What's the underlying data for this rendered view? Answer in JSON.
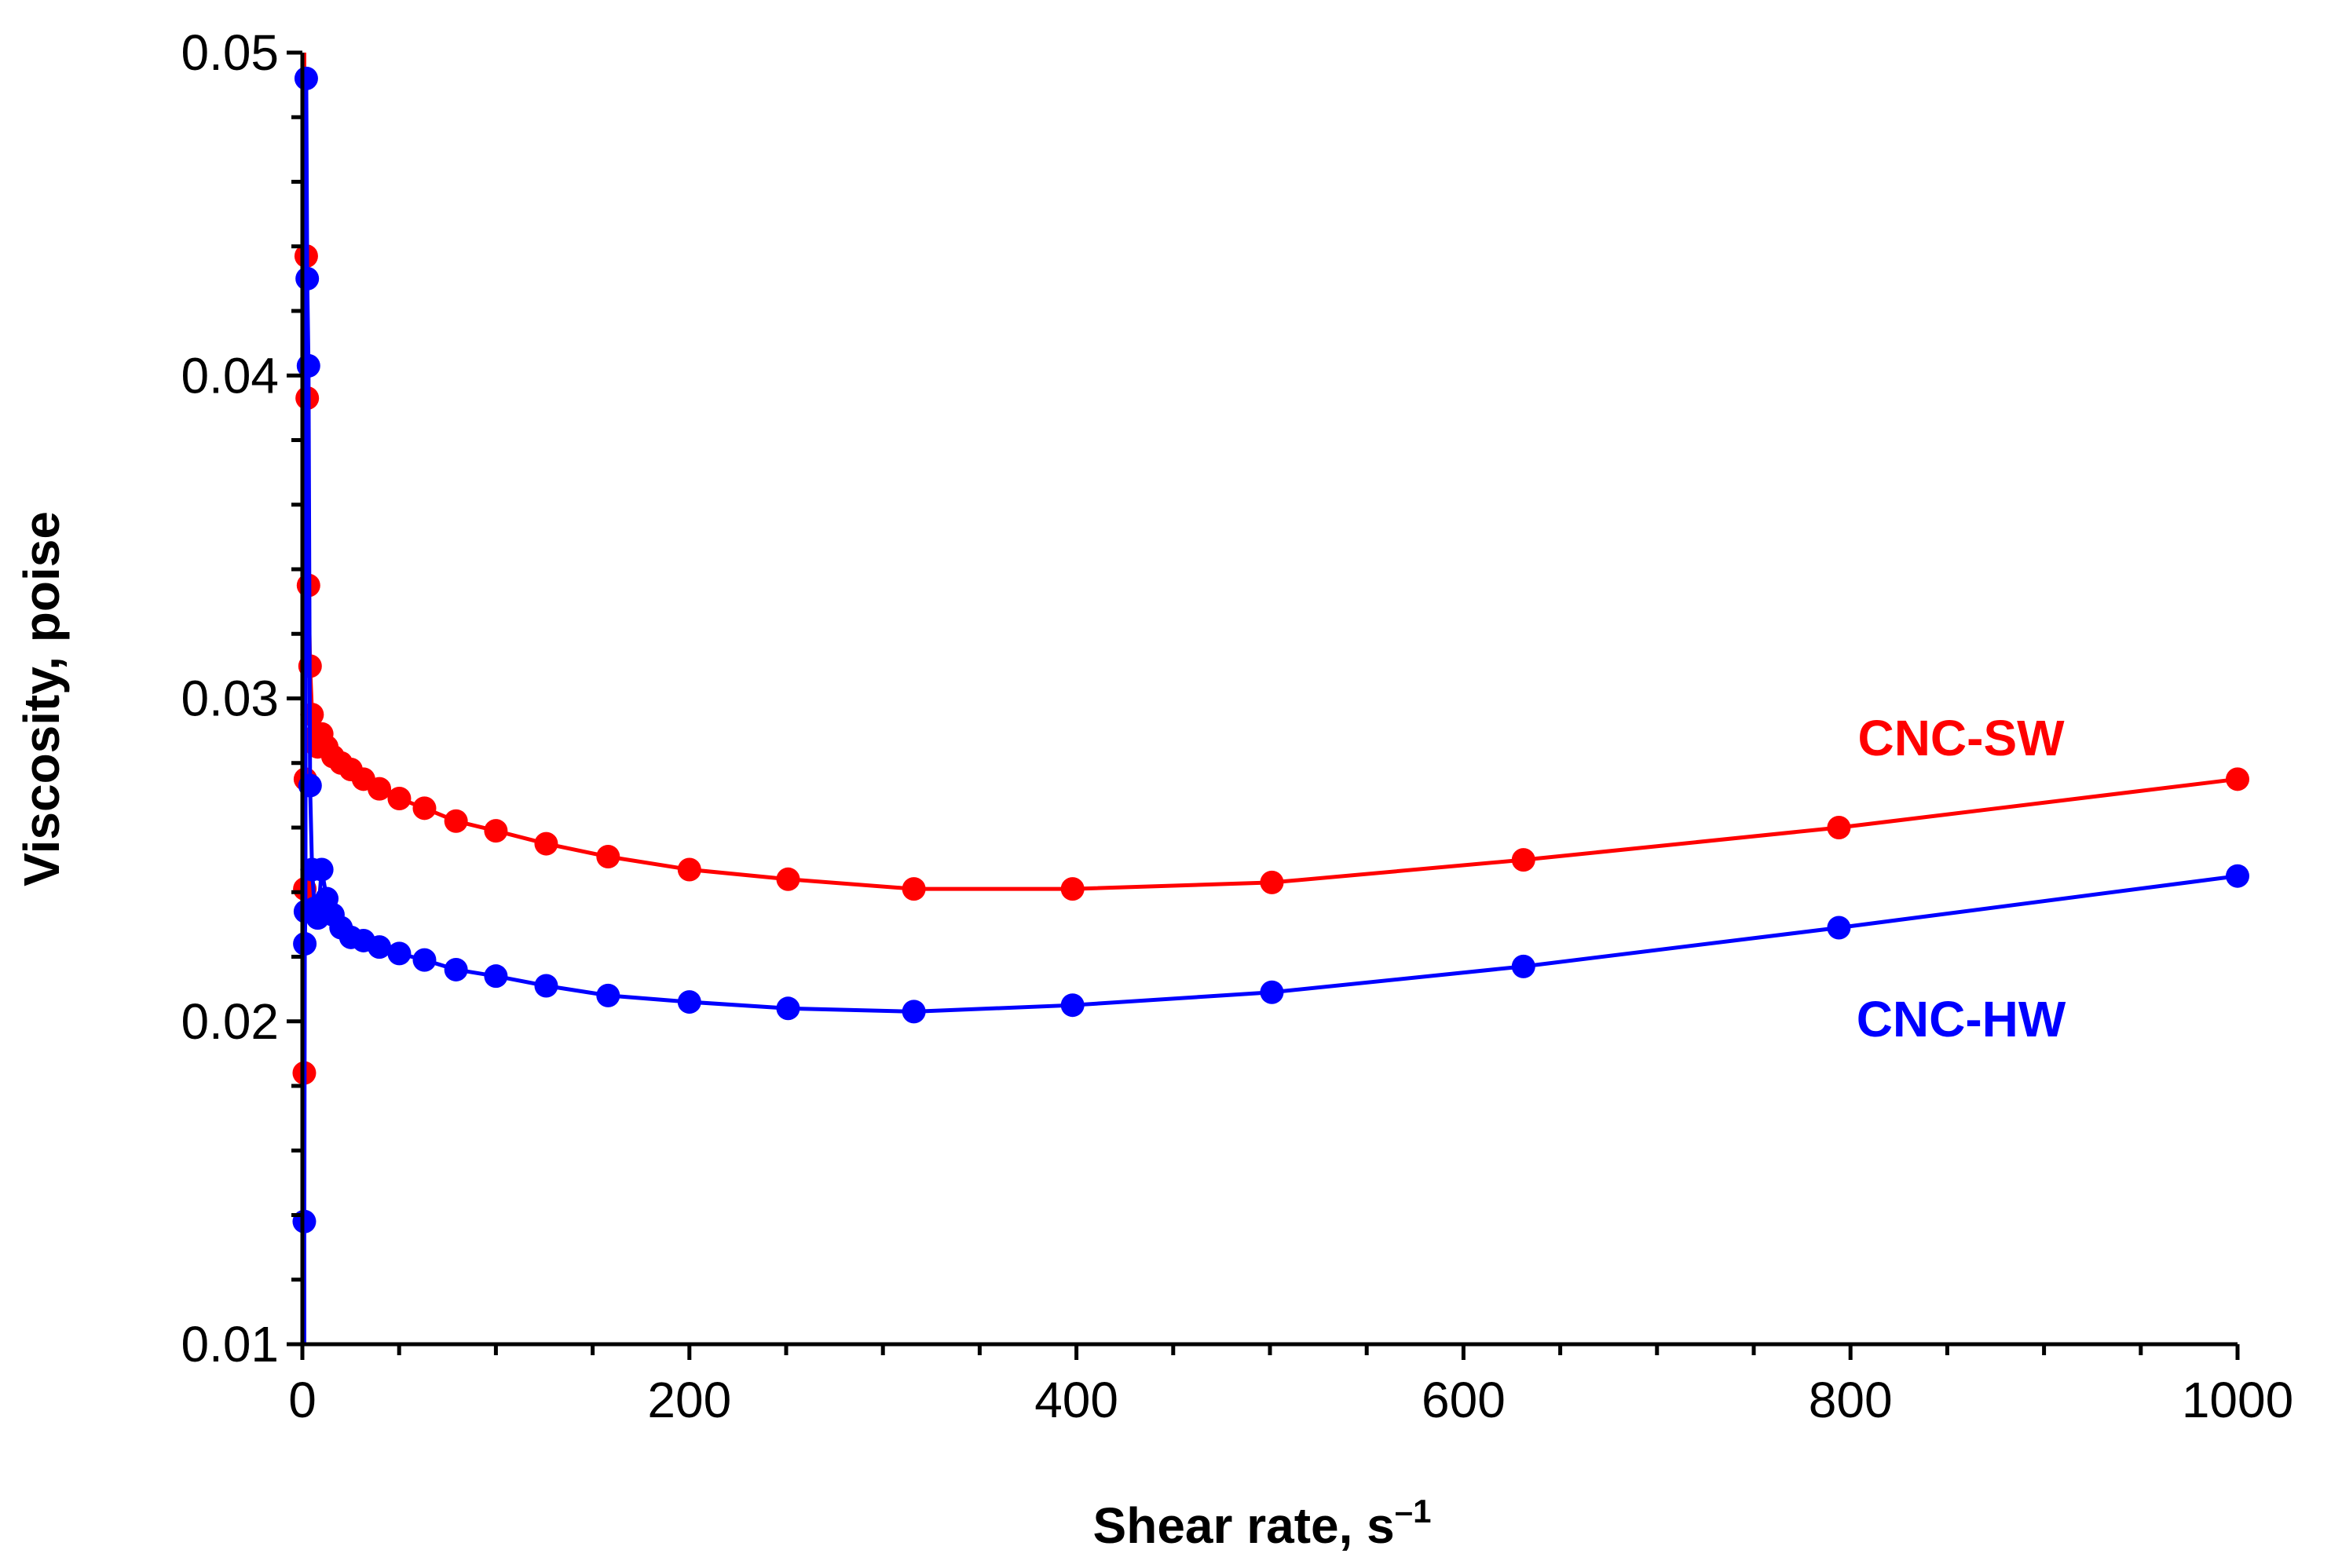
{
  "chart_data": {
    "type": "line",
    "title": "",
    "xlabel": "Shear rate, s",
    "xlabel_superscript": "–1",
    "ylabel": "Viscosity, poise",
    "xlim": [
      0,
      1000
    ],
    "ylim": [
      0.01,
      0.05
    ],
    "x_ticks": [
      0,
      200,
      400,
      600,
      800,
      1000
    ],
    "x_tick_labels": [
      "0",
      "200",
      "400",
      "600",
      "800",
      "1000"
    ],
    "y_ticks": [
      0.01,
      0.02,
      0.03,
      0.04,
      0.05
    ],
    "y_tick_labels": [
      "0.01",
      "0.02",
      "0.03",
      "0.04",
      "0.05"
    ],
    "grid": false,
    "legend": "inline labels near right end of each series",
    "series": [
      {
        "name": "CNC-SW",
        "label": "CNC-SW",
        "color": "#ff0000",
        "x": [
          1,
          1.26,
          1.58,
          2,
          2.51,
          3.16,
          3.98,
          5.01,
          6.31,
          7.94,
          10,
          12.6,
          15.8,
          20,
          25.1,
          31.6,
          39.8,
          50.1,
          63.1,
          79.4,
          100,
          126,
          158,
          200,
          251,
          316,
          398,
          501,
          631,
          794,
          1000
        ],
        "values": [
          0.0184,
          0.0241,
          0.0275,
          0.0437,
          0.0393,
          0.0335,
          0.031,
          0.0295,
          0.0288,
          0.0285,
          0.0289,
          0.0285,
          0.0282,
          0.028,
          0.0278,
          0.0275,
          0.0272,
          0.0269,
          0.0266,
          0.0262,
          0.0259,
          0.0255,
          0.0251,
          0.0247,
          0.0244,
          0.0241,
          0.0241,
          0.0243,
          0.025,
          0.026,
          0.0275
        ]
      },
      {
        "name": "CNC-HW",
        "label": "CNC-HW",
        "color": "#0000ff",
        "x": [
          1,
          1.26,
          1.58,
          2,
          2.51,
          3.16,
          3.98,
          5.01,
          6.31,
          7.94,
          10,
          12.6,
          15.8,
          20,
          25.1,
          31.6,
          39.8,
          50.1,
          63.1,
          79.4,
          100,
          126,
          158,
          200,
          251,
          316,
          398,
          501,
          631,
          794,
          1000
        ],
        "values": [
          0.0138,
          0.0224,
          0.0234,
          0.0492,
          0.043,
          0.0403,
          0.0273,
          0.0247,
          0.0235,
          0.0232,
          0.0247,
          0.0238,
          0.0233,
          0.0229,
          0.0226,
          0.0225,
          0.0223,
          0.0221,
          0.0219,
          0.0216,
          0.0214,
          0.0211,
          0.0208,
          0.0206,
          0.0204,
          0.0203,
          0.0205,
          0.0209,
          0.0217,
          0.0229,
          0.0245
        ]
      }
    ]
  }
}
